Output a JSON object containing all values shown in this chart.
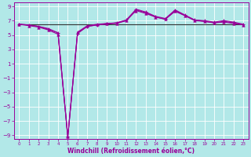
{
  "xlabel": "Windchill (Refroidissement éolien,°C)",
  "background_color": "#b2e8e8",
  "grid_color": "#d0e8e8",
  "line_color_purple": "#990099",
  "line_color_dark": "#333333",
  "xlim": [
    -0.5,
    23.5
  ],
  "ylim": [
    -9.5,
    9.5
  ],
  "xticks": [
    0,
    1,
    2,
    3,
    4,
    5,
    6,
    7,
    8,
    9,
    10,
    11,
    12,
    13,
    14,
    15,
    16,
    17,
    18,
    19,
    20,
    21,
    22,
    23
  ],
  "yticks": [
    -9,
    -7,
    -5,
    -3,
    -1,
    1,
    3,
    5,
    7,
    9
  ],
  "series_flat": [
    6.5,
    6.5,
    6.5,
    6.5,
    6.5,
    6.5,
    6.5,
    6.5,
    6.5,
    6.5,
    6.5,
    6.5,
    6.5,
    6.5,
    6.5,
    6.5,
    6.5,
    6.5,
    6.5,
    6.5,
    6.5,
    6.5,
    6.5,
    6.5
  ],
  "series1": [
    6.5,
    6.4,
    6.2,
    5.8,
    5.3,
    -9.2,
    5.2,
    6.2,
    6.4,
    6.6,
    6.7,
    7.1,
    8.6,
    8.2,
    7.6,
    7.3,
    8.5,
    7.8,
    7.1,
    7.0,
    6.8,
    7.0,
    6.8,
    6.5
  ],
  "series2": [
    6.5,
    6.4,
    6.2,
    5.9,
    5.3,
    -9.2,
    5.3,
    6.2,
    6.4,
    6.5,
    6.7,
    7.0,
    8.5,
    8.1,
    7.5,
    7.2,
    8.4,
    7.7,
    7.1,
    6.9,
    6.7,
    6.9,
    6.7,
    6.4
  ],
  "series3": [
    6.5,
    6.3,
    6.1,
    5.7,
    5.1,
    -9.2,
    5.4,
    6.3,
    6.5,
    6.6,
    6.6,
    7.0,
    8.4,
    8.0,
    7.5,
    7.2,
    8.3,
    7.7,
    7.0,
    6.9,
    6.7,
    6.8,
    6.6,
    6.4
  ]
}
